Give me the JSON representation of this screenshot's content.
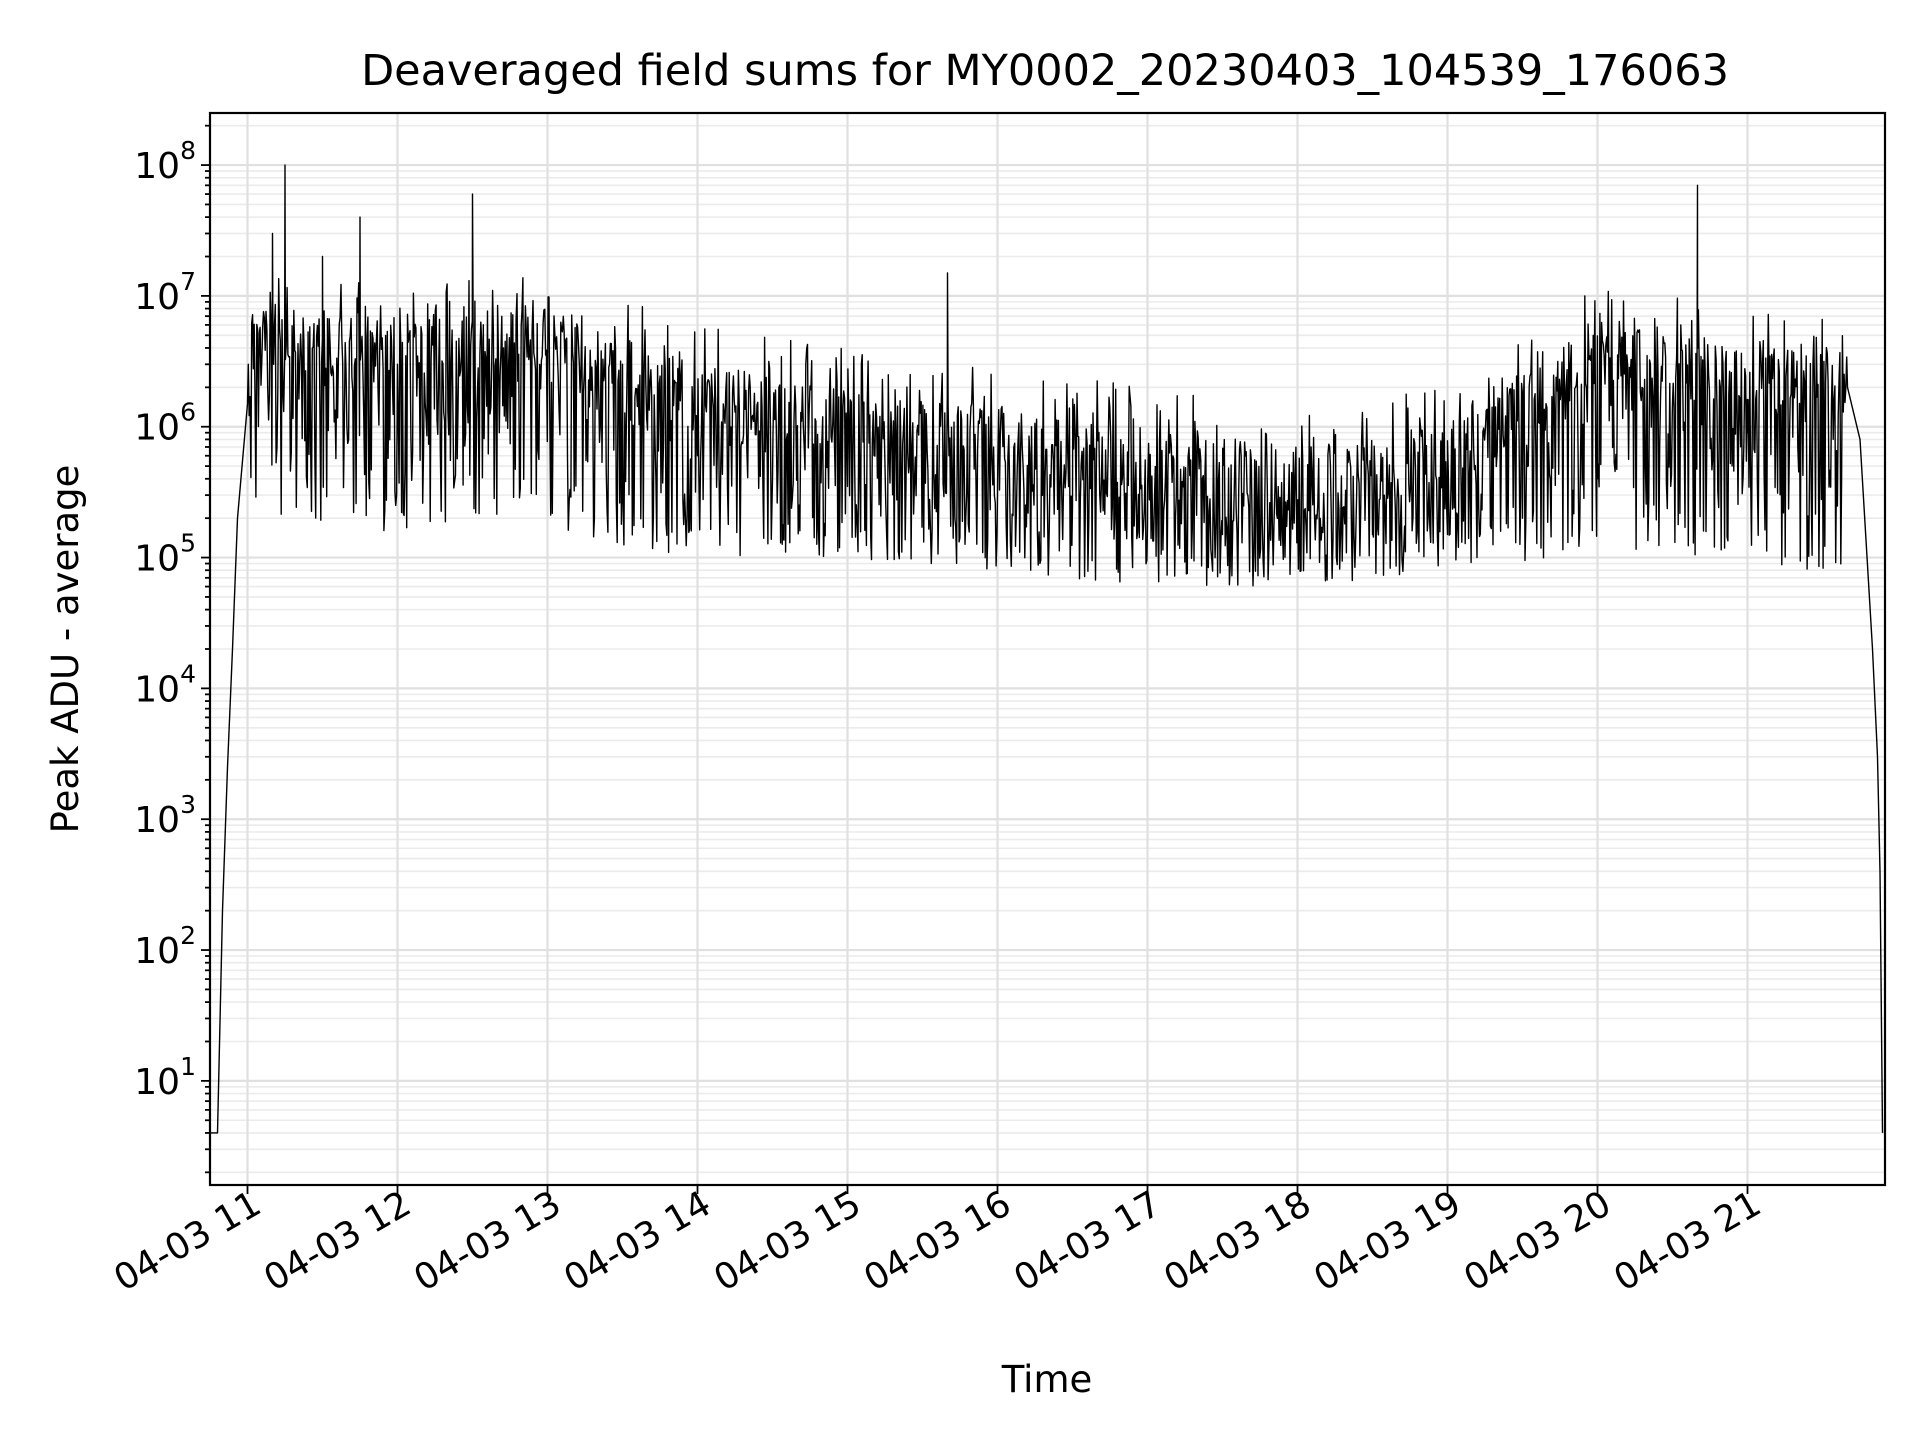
{
  "chart_data": {
    "type": "line",
    "title": "Deaveraged field sums for MY0002_20230403_104539_176063",
    "xlabel": "Time",
    "ylabel": "Peak ADU - average",
    "yscale": "log",
    "ylim": [
      1.6,
      250000000
    ],
    "xlim": [
      "2023-04-03 10:45",
      "2023-04-03 21:55"
    ],
    "grid": true,
    "x_tick_labels": [
      "04-03 11",
      "04-03 12",
      "04-03 13",
      "04-03 14",
      "04-03 15",
      "04-03 16",
      "04-03 17",
      "04-03 18",
      "04-03 19",
      "04-03 20",
      "04-03 21"
    ],
    "x_tick_hours": [
      11,
      12,
      13,
      14,
      15,
      16,
      17,
      18,
      19,
      20,
      21
    ],
    "y_tick_labels": [
      {
        "base": "10",
        "exp": "1"
      },
      {
        "base": "10",
        "exp": "2"
      },
      {
        "base": "10",
        "exp": "3"
      },
      {
        "base": "10",
        "exp": "4"
      },
      {
        "base": "10",
        "exp": "5"
      },
      {
        "base": "10",
        "exp": "6"
      },
      {
        "base": "10",
        "exp": "7"
      },
      {
        "base": "10",
        "exp": "8"
      }
    ],
    "line_color": "#000000",
    "series": [
      {
        "points": [
          [
            "2023-04-03 10:45",
            4
          ],
          [
            "2023-04-03 10:48",
            4
          ],
          [
            "2023-04-03 10:50",
            200
          ],
          [
            "2023-04-03 10:52",
            2500
          ],
          [
            "2023-04-03 10:54",
            20000
          ],
          [
            "2023-04-03 10:56",
            200000
          ],
          [
            "2023-04-03 11:00",
            1500000
          ],
          [
            "2023-04-03 11:10",
            30000000
          ],
          [
            "2023-04-03 11:15",
            100000000
          ],
          [
            "2023-04-03 11:30",
            20000000
          ],
          [
            "2023-04-03 11:45",
            40000000
          ],
          [
            "2023-04-03 12:00",
            3000000
          ],
          [
            "2023-04-03 12:30",
            60000000
          ],
          [
            "2023-04-03 13:00",
            1500000
          ],
          [
            "2023-04-03 13:30",
            3000000
          ],
          [
            "2023-04-03 14:00",
            600000
          ],
          [
            "2023-04-03 14:30",
            400000
          ],
          [
            "2023-04-03 15:00",
            350000
          ],
          [
            "2023-04-03 15:40",
            15000000
          ],
          [
            "2023-04-03 16:00",
            300000
          ],
          [
            "2023-04-03 16:30",
            250000
          ],
          [
            "2023-04-03 17:00",
            180000
          ],
          [
            "2023-04-03 17:30",
            150000
          ],
          [
            "2023-04-03 18:00",
            130000
          ],
          [
            "2023-04-03 18:30",
            150000
          ],
          [
            "2023-04-03 19:00",
            150000
          ],
          [
            "2023-04-03 19:30",
            200000
          ],
          [
            "2023-04-03 20:00",
            400000
          ],
          [
            "2023-04-03 20:30",
            1500000
          ],
          [
            "2023-04-03 20:40",
            70000000
          ],
          [
            "2023-04-03 21:00",
            900000
          ],
          [
            "2023-04-03 21:30",
            900000
          ],
          [
            "2023-04-03 21:40",
            2000000
          ],
          [
            "2023-04-03 21:45",
            800000
          ],
          [
            "2023-04-03 21:50",
            20000
          ],
          [
            "2023-04-03 21:52",
            3000
          ],
          [
            "2023-04-03 21:53",
            400
          ],
          [
            "2023-04-03 21:54",
            4
          ]
        ],
        "band": [
          [
            "2023-04-03 11:00",
            200000,
            3000000,
            15000000
          ],
          [
            "2023-04-03 12:00",
            150000,
            2500000,
            12000000
          ],
          [
            "2023-04-03 13:00",
            150000,
            3000000,
            15000000
          ],
          [
            "2023-04-03 14:00",
            100000,
            1000000,
            6000000
          ],
          [
            "2023-04-03 15:00",
            90000,
            600000,
            4000000
          ],
          [
            "2023-04-03 16:00",
            80000,
            500000,
            3000000
          ],
          [
            "2023-04-03 17:00",
            60000,
            300000,
            2000000
          ],
          [
            "2023-04-03 18:00",
            60000,
            250000,
            1500000
          ],
          [
            "2023-04-03 19:00",
            80000,
            350000,
            2000000
          ],
          [
            "2023-04-03 20:00",
            100000,
            2000000,
            12000000
          ],
          [
            "2023-04-03 21:00",
            80000,
            1500000,
            8000000
          ]
        ]
      }
    ]
  }
}
